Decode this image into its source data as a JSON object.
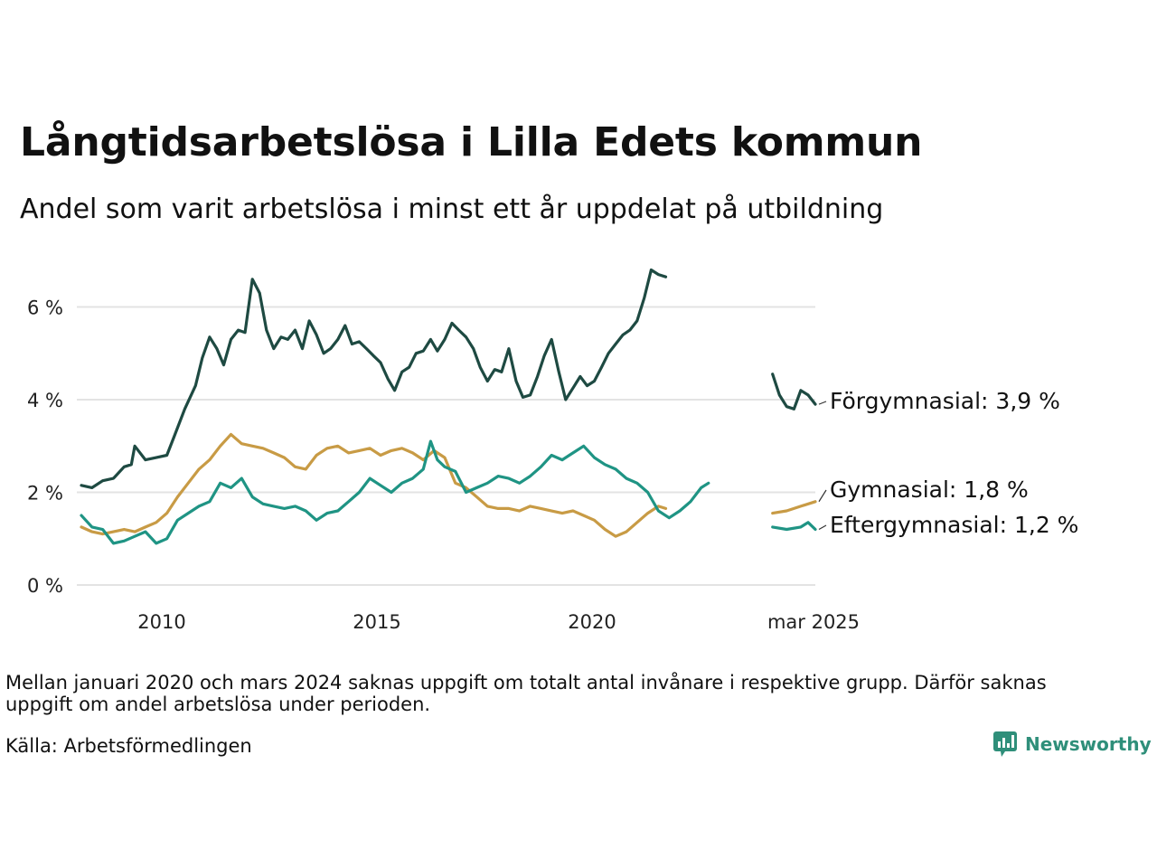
{
  "title": "Långtidsarbetslösa i Lilla Edets kommun",
  "subtitle": "Andel som varit arbetslösa i minst ett år uppdelat på utbildning",
  "note": "Mellan januari 2020 och mars 2024 saknas uppgift om totalt antal invånare i respektive grupp. Därför saknas uppgift om andel arbetslösa under perioden.",
  "source": "Källa: Arbetsförmedlingen",
  "brand": "Newsworthy",
  "chart_data": {
    "type": "line",
    "title": "Långtidsarbetslösa i Lilla Edets kommun",
    "subtitle": "Andel som varit arbetslösa i minst ett år uppdelat på utbildning",
    "ylim": [
      0,
      7
    ],
    "y_ticks": [
      0,
      2,
      4,
      6
    ],
    "y_tick_labels": [
      "0 %",
      "2 %",
      "4 %",
      "6 %"
    ],
    "x_ticks": [
      2010,
      2015,
      2020,
      2025.17
    ],
    "x_tick_labels": [
      "2010",
      "2015",
      "2020",
      "mar 2025"
    ],
    "grid": "horizontal",
    "series": [
      {
        "name": "Förgymnasial",
        "color": "#1e4a42",
        "end_label": "Förgymnasial: 3,9 %",
        "segments": [
          [
            [
              2008.0,
              2.15
            ],
            [
              2008.25,
              2.1
            ],
            [
              2008.5,
              2.25
            ],
            [
              2008.75,
              2.3
            ],
            [
              2009.0,
              2.55
            ],
            [
              2009.17,
              2.6
            ],
            [
              2009.25,
              3.0
            ],
            [
              2009.5,
              2.7
            ],
            [
              2009.75,
              2.75
            ],
            [
              2010.0,
              2.8
            ],
            [
              2010.17,
              3.2
            ],
            [
              2010.42,
              3.8
            ],
            [
              2010.67,
              4.3
            ],
            [
              2010.83,
              4.9
            ],
            [
              2011.0,
              5.35
            ],
            [
              2011.17,
              5.1
            ],
            [
              2011.33,
              4.75
            ],
            [
              2011.5,
              5.3
            ],
            [
              2011.67,
              5.5
            ],
            [
              2011.83,
              5.45
            ],
            [
              2012.0,
              6.6
            ],
            [
              2012.17,
              6.3
            ],
            [
              2012.33,
              5.5
            ],
            [
              2012.5,
              5.1
            ],
            [
              2012.67,
              5.35
            ],
            [
              2012.83,
              5.3
            ],
            [
              2013.0,
              5.5
            ],
            [
              2013.17,
              5.1
            ],
            [
              2013.33,
              5.7
            ],
            [
              2013.5,
              5.4
            ],
            [
              2013.67,
              5.0
            ],
            [
              2013.83,
              5.1
            ],
            [
              2014.0,
              5.3
            ],
            [
              2014.17,
              5.6
            ],
            [
              2014.33,
              5.2
            ],
            [
              2014.5,
              5.25
            ],
            [
              2014.67,
              5.1
            ],
            [
              2014.83,
              4.95
            ],
            [
              2015.0,
              4.8
            ],
            [
              2015.17,
              4.45
            ],
            [
              2015.33,
              4.2
            ],
            [
              2015.5,
              4.6
            ],
            [
              2015.67,
              4.7
            ],
            [
              2015.83,
              5.0
            ],
            [
              2016.0,
              5.05
            ],
            [
              2016.17,
              5.3
            ],
            [
              2016.33,
              5.05
            ],
            [
              2016.5,
              5.3
            ],
            [
              2016.67,
              5.65
            ],
            [
              2016.83,
              5.5
            ],
            [
              2017.0,
              5.35
            ],
            [
              2017.17,
              5.1
            ],
            [
              2017.33,
              4.7
            ],
            [
              2017.5,
              4.4
            ],
            [
              2017.67,
              4.65
            ],
            [
              2017.83,
              4.6
            ],
            [
              2018.0,
              5.1
            ],
            [
              2018.17,
              4.4
            ],
            [
              2018.33,
              4.05
            ],
            [
              2018.5,
              4.1
            ],
            [
              2018.67,
              4.5
            ],
            [
              2018.83,
              4.95
            ],
            [
              2019.0,
              5.3
            ],
            [
              2019.17,
              4.6
            ],
            [
              2019.33,
              4.0
            ],
            [
              2019.5,
              4.25
            ],
            [
              2019.67,
              4.5
            ],
            [
              2019.83,
              4.3
            ],
            [
              2020.0,
              4.4
            ],
            [
              2020.17,
              4.7
            ],
            [
              2020.33,
              5.0
            ],
            [
              2020.5,
              5.2
            ],
            [
              2020.67,
              5.4
            ],
            [
              2020.83,
              5.5
            ],
            [
              2021.0,
              5.7
            ],
            [
              2021.17,
              6.2
            ],
            [
              2021.33,
              6.8
            ],
            [
              2021.5,
              6.7
            ],
            [
              2021.67,
              6.65
            ]
          ],
          [
            [
              2024.17,
              4.55
            ],
            [
              2024.33,
              4.1
            ],
            [
              2024.5,
              3.85
            ],
            [
              2024.67,
              3.8
            ],
            [
              2024.83,
              4.2
            ],
            [
              2025.0,
              4.1
            ],
            [
              2025.17,
              3.9
            ]
          ]
        ]
      },
      {
        "name": "Gymnasial",
        "color": "#c89b45",
        "end_label": "Gymnasial: 1,8 %",
        "segments": [
          [
            [
              2008.0,
              1.25
            ],
            [
              2008.25,
              1.15
            ],
            [
              2008.5,
              1.1
            ],
            [
              2008.75,
              1.15
            ],
            [
              2009.0,
              1.2
            ],
            [
              2009.25,
              1.15
            ],
            [
              2009.5,
              1.25
            ],
            [
              2009.75,
              1.35
            ],
            [
              2010.0,
              1.55
            ],
            [
              2010.25,
              1.9
            ],
            [
              2010.5,
              2.2
            ],
            [
              2010.75,
              2.5
            ],
            [
              2011.0,
              2.7
            ],
            [
              2011.25,
              3.0
            ],
            [
              2011.5,
              3.25
            ],
            [
              2011.75,
              3.05
            ],
            [
              2012.0,
              3.0
            ],
            [
              2012.25,
              2.95
            ],
            [
              2012.5,
              2.85
            ],
            [
              2012.75,
              2.75
            ],
            [
              2013.0,
              2.55
            ],
            [
              2013.25,
              2.5
            ],
            [
              2013.5,
              2.8
            ],
            [
              2013.75,
              2.95
            ],
            [
              2014.0,
              3.0
            ],
            [
              2014.25,
              2.85
            ],
            [
              2014.5,
              2.9
            ],
            [
              2014.75,
              2.95
            ],
            [
              2015.0,
              2.8
            ],
            [
              2015.25,
              2.9
            ],
            [
              2015.5,
              2.95
            ],
            [
              2015.75,
              2.85
            ],
            [
              2016.0,
              2.7
            ],
            [
              2016.25,
              2.9
            ],
            [
              2016.5,
              2.75
            ],
            [
              2016.75,
              2.2
            ],
            [
              2017.0,
              2.1
            ],
            [
              2017.25,
              1.9
            ],
            [
              2017.5,
              1.7
            ],
            [
              2017.75,
              1.65
            ],
            [
              2018.0,
              1.65
            ],
            [
              2018.25,
              1.6
            ],
            [
              2018.5,
              1.7
            ],
            [
              2018.75,
              1.65
            ],
            [
              2019.0,
              1.6
            ],
            [
              2019.25,
              1.55
            ],
            [
              2019.5,
              1.6
            ],
            [
              2019.75,
              1.5
            ],
            [
              2020.0,
              1.4
            ],
            [
              2020.25,
              1.2
            ],
            [
              2020.5,
              1.05
            ],
            [
              2020.75,
              1.15
            ],
            [
              2021.0,
              1.35
            ],
            [
              2021.25,
              1.55
            ],
            [
              2021.5,
              1.7
            ],
            [
              2021.67,
              1.65
            ]
          ],
          [
            [
              2024.17,
              1.55
            ],
            [
              2024.5,
              1.6
            ],
            [
              2024.83,
              1.7
            ],
            [
              2025.17,
              1.8
            ]
          ]
        ]
      },
      {
        "name": "Eftergymnasial",
        "color": "#1f9484",
        "end_label": "Eftergymnasial: 1,2 %",
        "segments": [
          [
            [
              2008.0,
              1.5
            ],
            [
              2008.25,
              1.25
            ],
            [
              2008.5,
              1.2
            ],
            [
              2008.75,
              0.9
            ],
            [
              2009.0,
              0.95
            ],
            [
              2009.25,
              1.05
            ],
            [
              2009.5,
              1.15
            ],
            [
              2009.75,
              0.9
            ],
            [
              2010.0,
              1.0
            ],
            [
              2010.25,
              1.4
            ],
            [
              2010.5,
              1.55
            ],
            [
              2010.75,
              1.7
            ],
            [
              2011.0,
              1.8
            ],
            [
              2011.25,
              2.2
            ],
            [
              2011.5,
              2.1
            ],
            [
              2011.75,
              2.3
            ],
            [
              2012.0,
              1.9
            ],
            [
              2012.25,
              1.75
            ],
            [
              2012.5,
              1.7
            ],
            [
              2012.75,
              1.65
            ],
            [
              2013.0,
              1.7
            ],
            [
              2013.25,
              1.6
            ],
            [
              2013.5,
              1.4
            ],
            [
              2013.75,
              1.55
            ],
            [
              2014.0,
              1.6
            ],
            [
              2014.25,
              1.8
            ],
            [
              2014.5,
              2.0
            ],
            [
              2014.75,
              2.3
            ],
            [
              2015.0,
              2.15
            ],
            [
              2015.25,
              2.0
            ],
            [
              2015.5,
              2.2
            ],
            [
              2015.75,
              2.3
            ],
            [
              2016.0,
              2.5
            ],
            [
              2016.17,
              3.1
            ],
            [
              2016.33,
              2.7
            ],
            [
              2016.5,
              2.55
            ],
            [
              2016.75,
              2.45
            ],
            [
              2017.0,
              2.0
            ],
            [
              2017.25,
              2.1
            ],
            [
              2017.5,
              2.2
            ],
            [
              2017.75,
              2.35
            ],
            [
              2018.0,
              2.3
            ],
            [
              2018.25,
              2.2
            ],
            [
              2018.5,
              2.35
            ],
            [
              2018.75,
              2.55
            ],
            [
              2019.0,
              2.8
            ],
            [
              2019.25,
              2.7
            ],
            [
              2019.5,
              2.85
            ],
            [
              2019.75,
              3.0
            ],
            [
              2020.0,
              2.75
            ],
            [
              2020.25,
              2.6
            ],
            [
              2020.5,
              2.5
            ],
            [
              2020.75,
              2.3
            ],
            [
              2021.0,
              2.2
            ],
            [
              2021.25,
              2.0
            ],
            [
              2021.5,
              1.6
            ],
            [
              2021.75,
              1.45
            ],
            [
              2022.0,
              1.6
            ],
            [
              2022.25,
              1.8
            ],
            [
              2022.5,
              2.1
            ],
            [
              2022.67,
              2.2
            ]
          ],
          [
            [
              2024.17,
              1.25
            ],
            [
              2024.5,
              1.2
            ],
            [
              2024.83,
              1.25
            ],
            [
              2025.0,
              1.35
            ],
            [
              2025.17,
              1.2
            ]
          ]
        ]
      }
    ]
  }
}
